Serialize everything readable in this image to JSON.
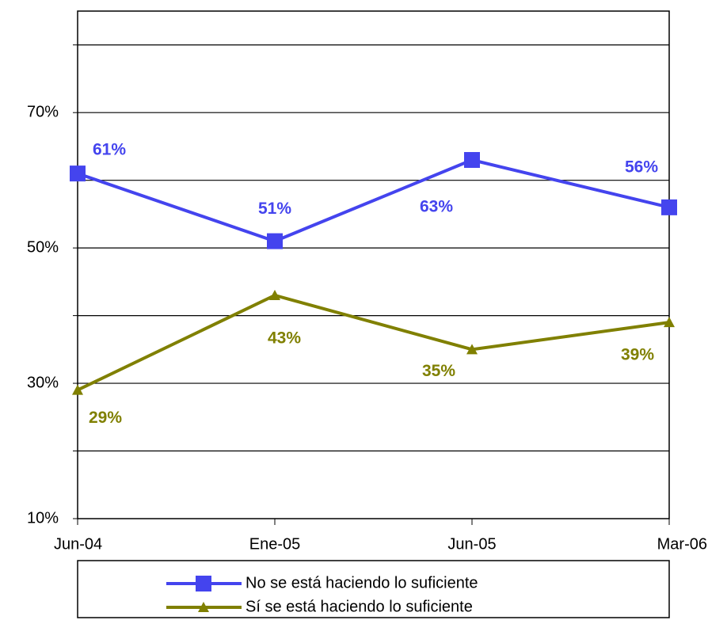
{
  "chart_data": {
    "type": "line",
    "categories": [
      "Jun-04",
      "Ene-05",
      "Jun-05",
      "Mar-06"
    ],
    "series": [
      {
        "name": "No se está haciendo lo suficiente",
        "color": "#4444ee",
        "marker": "square",
        "values": [
          61,
          51,
          63,
          56
        ],
        "value_labels": [
          "61%",
          "51%",
          "63%",
          "56%"
        ]
      },
      {
        "name": "Sí se está haciendo lo suficiente",
        "color": "#808000",
        "marker": "triangle",
        "values": [
          29,
          43,
          35,
          39
        ],
        "value_labels": [
          "29%",
          "43%",
          "35%",
          "39%"
        ]
      }
    ],
    "ylim": [
      10,
      85
    ],
    "yticks": [
      {
        "value": 10,
        "label": "10%"
      },
      {
        "value": 20,
        "label": null
      },
      {
        "value": 30,
        "label": "30%"
      },
      {
        "value": 40,
        "label": null
      },
      {
        "value": 50,
        "label": "50%"
      },
      {
        "value": 60,
        "label": null
      },
      {
        "value": 70,
        "label": "70%"
      },
      {
        "value": 80,
        "label": null
      }
    ],
    "grid": true,
    "legend": "bottom"
  }
}
